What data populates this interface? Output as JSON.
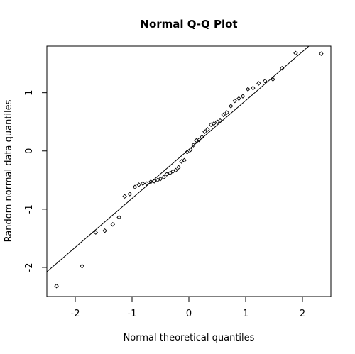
{
  "chart_data": {
    "type": "scatter",
    "title": "Normal Q-Q Plot",
    "xlabel": "Normal theoretical quantiles",
    "ylabel": "Random normal data quantiles",
    "xlim": [
      -2.5,
      2.5
    ],
    "ylim": [
      -2.5,
      1.8
    ],
    "x_ticks": [
      -2,
      -1,
      0,
      1,
      2
    ],
    "y_ticks": [
      -2,
      -1,
      0,
      1
    ],
    "x_tick_labels": [
      "-2",
      "-1",
      "0",
      "1",
      "2"
    ],
    "y_tick_labels": [
      "-2",
      "-1",
      "0",
      "1"
    ],
    "grid": false,
    "point_marker": "open-diamond",
    "reference_line": {
      "intercept": 0.025,
      "slope": 0.84
    },
    "points": [
      {
        "x": -2.33,
        "y": -2.32
      },
      {
        "x": -1.88,
        "y": -1.98
      },
      {
        "x": -1.64,
        "y": -1.4
      },
      {
        "x": -1.48,
        "y": -1.37
      },
      {
        "x": -1.34,
        "y": -1.26
      },
      {
        "x": -1.23,
        "y": -1.14
      },
      {
        "x": -1.13,
        "y": -0.78
      },
      {
        "x": -1.04,
        "y": -0.74
      },
      {
        "x": -0.95,
        "y": -0.62
      },
      {
        "x": -0.88,
        "y": -0.58
      },
      {
        "x": -0.81,
        "y": -0.56
      },
      {
        "x": -0.74,
        "y": -0.56
      },
      {
        "x": -0.67,
        "y": -0.53
      },
      {
        "x": -0.61,
        "y": -0.52
      },
      {
        "x": -0.55,
        "y": -0.5
      },
      {
        "x": -0.5,
        "y": -0.48
      },
      {
        "x": -0.44,
        "y": -0.45
      },
      {
        "x": -0.39,
        "y": -0.4
      },
      {
        "x": -0.33,
        "y": -0.38
      },
      {
        "x": -0.28,
        "y": -0.35
      },
      {
        "x": -0.23,
        "y": -0.33
      },
      {
        "x": -0.18,
        "y": -0.28
      },
      {
        "x": -0.13,
        "y": -0.18
      },
      {
        "x": -0.08,
        "y": -0.16
      },
      {
        "x": -0.03,
        "y": -0.02
      },
      {
        "x": 0.03,
        "y": 0.02
      },
      {
        "x": 0.08,
        "y": 0.1
      },
      {
        "x": 0.13,
        "y": 0.18
      },
      {
        "x": 0.18,
        "y": 0.19
      },
      {
        "x": 0.23,
        "y": 0.24
      },
      {
        "x": 0.28,
        "y": 0.33
      },
      {
        "x": 0.33,
        "y": 0.37
      },
      {
        "x": 0.39,
        "y": 0.45
      },
      {
        "x": 0.44,
        "y": 0.47
      },
      {
        "x": 0.5,
        "y": 0.5
      },
      {
        "x": 0.55,
        "y": 0.52
      },
      {
        "x": 0.61,
        "y": 0.62
      },
      {
        "x": 0.67,
        "y": 0.66
      },
      {
        "x": 0.74,
        "y": 0.77
      },
      {
        "x": 0.81,
        "y": 0.86
      },
      {
        "x": 0.88,
        "y": 0.9
      },
      {
        "x": 0.95,
        "y": 0.94
      },
      {
        "x": 1.04,
        "y": 1.06
      },
      {
        "x": 1.13,
        "y": 1.08
      },
      {
        "x": 1.23,
        "y": 1.16
      },
      {
        "x": 1.34,
        "y": 1.2
      },
      {
        "x": 1.48,
        "y": 1.23
      },
      {
        "x": 1.64,
        "y": 1.42
      },
      {
        "x": 1.88,
        "y": 1.68
      },
      {
        "x": 2.33,
        "y": 1.67
      }
    ]
  }
}
